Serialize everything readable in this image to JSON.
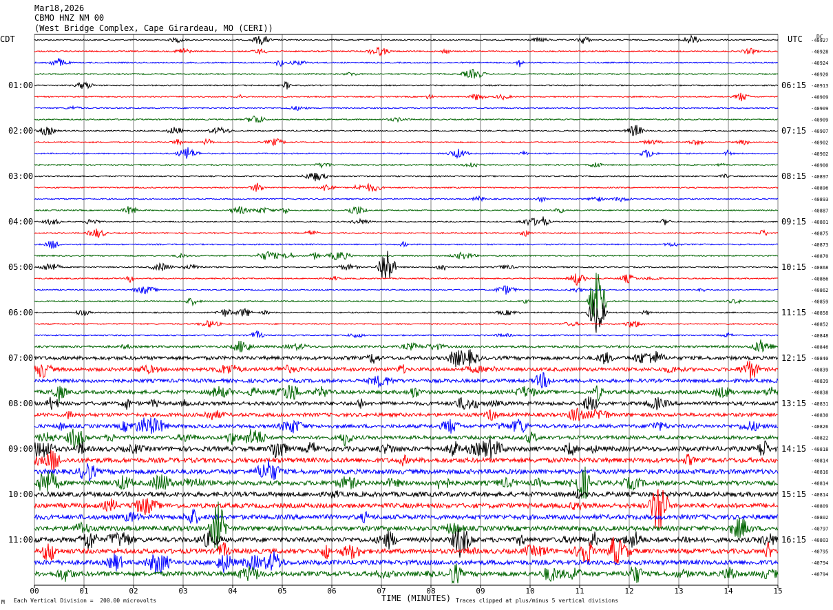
{
  "header": {
    "date": "Mar18,2026",
    "station": "CBMO HNZ NM 00",
    "location": "(West Bridge Complex, Cape Girardeau, MO (CERI))"
  },
  "left_tz": "CDT",
  "right_tz": "UTC",
  "dc_label": "DC",
  "footer": {
    "division": "Each Vertical Division =  200.00 microvolts",
    "xlabel": "TIME (MINUTES)",
    "clipped": "Traces clipped at plus/minus 5 vertical divisions",
    "corner": "M"
  },
  "colors": {
    "black": "#000000",
    "red": "#ff0000",
    "blue": "#0000ff",
    "green": "#006400",
    "grid": "#808080"
  },
  "chart_data": {
    "type": "line",
    "title": "CBMO HNZ NM 00",
    "xlabel": "TIME (MINUTES)",
    "xlim": [
      0,
      15
    ],
    "x_ticks": [
      "00",
      "01",
      "02",
      "03",
      "04",
      "05",
      "06",
      "07",
      "08",
      "09",
      "10",
      "11",
      "12",
      "13",
      "14",
      "15"
    ],
    "trace_colors": [
      "black",
      "red",
      "blue",
      "green"
    ],
    "left_hour_labels": [
      "01:00",
      "02:00",
      "03:00",
      "04:00",
      "05:00",
      "06:00",
      "07:00",
      "08:00",
      "09:00",
      "10:00",
      "11:00"
    ],
    "right_hour_labels": [
      "06:15",
      "07:15",
      "08:15",
      "09:15",
      "10:15",
      "11:15",
      "12:15",
      "13:15",
      "14:15",
      "15:15",
      "16:15"
    ],
    "dc_offsets": [
      "-40927",
      "-40928",
      "-40924",
      "-40920",
      "-40913",
      "-40909",
      "-40909",
      "-40909",
      "-40907",
      "-40902",
      "-40902",
      "-40900",
      "-40897",
      "-40896",
      "-40893",
      "-40887",
      "-40881",
      "-40875",
      "-40873",
      "-40870",
      "-40868",
      "-40866",
      "-40862",
      "-40859",
      "-40858",
      "-40852",
      "-40848",
      "-40846",
      "-40840",
      "-40839",
      "-40839",
      "-40838",
      "-40831",
      "-40830",
      "-40826",
      "-40822",
      "-40818",
      "-40814",
      "-40816",
      "-40814",
      "-40814",
      "-40809",
      "-40802",
      "-40797",
      "-40803",
      "-40795",
      "-40794",
      "-40794"
    ],
    "activity_levels": [
      1,
      1,
      1,
      1,
      1,
      1,
      1,
      1,
      1,
      1,
      1,
      1,
      1,
      1,
      1,
      1,
      1,
      1,
      1,
      1,
      1,
      1,
      1,
      1,
      1,
      1,
      1,
      2,
      3,
      3,
      3,
      3,
      3,
      3,
      3,
      3,
      4,
      4,
      4,
      4,
      4,
      4,
      4,
      4,
      4,
      4,
      4,
      4
    ],
    "events": [
      {
        "row": 20,
        "minute": 7.1,
        "amplitude": 3
      },
      {
        "row": 23,
        "minute": 11.35,
        "amplitude": 5
      },
      {
        "row": 24,
        "minute": 11.35,
        "amplitude": 3
      },
      {
        "row": 41,
        "minute": 12.6,
        "amplitude": 5
      },
      {
        "row": 43,
        "minute": 3.7,
        "amplitude": 4
      }
    ]
  }
}
